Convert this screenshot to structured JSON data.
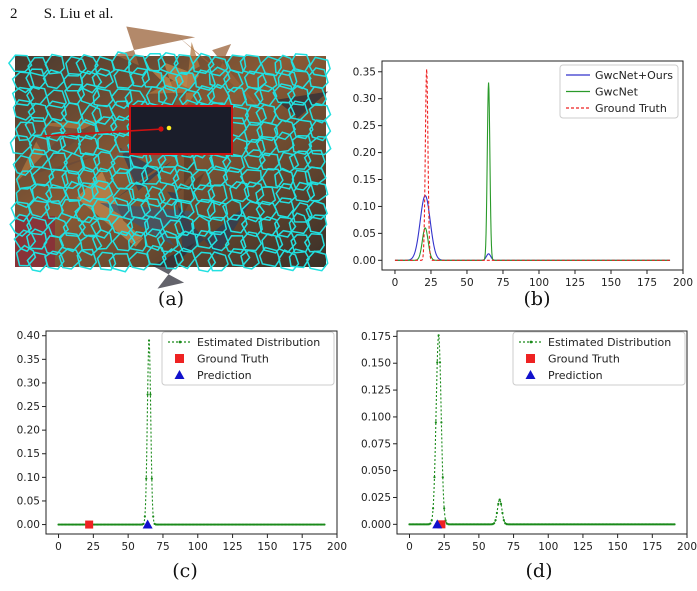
{
  "header": {
    "page_number": "2",
    "authors": "S. Liu et al."
  },
  "captions": {
    "a": "(a)",
    "b": "(b)",
    "c": "(c)",
    "d": "(d)"
  },
  "colors": {
    "segment_line": "#22e0e0",
    "highlight_box": "#cc1111",
    "ours": "#3333cc",
    "gwcnet": "#2a9a2a",
    "ground_truth": "#ee2222",
    "estimated": "#1a8a1a",
    "prediction": "#1111cc"
  },
  "chart_data": [
    {
      "id": "b",
      "type": "line",
      "x_ticks": [
        0,
        25,
        50,
        75,
        100,
        125,
        150,
        175,
        200
      ],
      "y_ticks": [
        "0.00",
        "0.05",
        "0.10",
        "0.15",
        "0.20",
        "0.25",
        "0.30",
        "0.35"
      ],
      "xlim": [
        -9,
        200
      ],
      "ylim": [
        -0.018,
        0.37
      ],
      "legend": [
        "GwcNet+Ours",
        "GwcNet",
        "Ground Truth"
      ],
      "legend_position": "top-right",
      "series": [
        {
          "name": "GwcNet+Ours",
          "peaks": [
            {
              "center": 21,
              "height": 0.12,
              "width": 3.5
            },
            {
              "center": 65,
              "height": 0.012,
              "width": 1.5
            }
          ]
        },
        {
          "name": "GwcNet",
          "peaks": [
            {
              "center": 21,
              "height": 0.06,
              "width": 2.0
            },
            {
              "center": 65,
              "height": 0.33,
              "width": 0.9
            }
          ]
        },
        {
          "name": "Ground Truth",
          "peaks": [
            {
              "center": 22,
              "height": 0.355,
              "width": 0.9
            }
          ]
        }
      ]
    },
    {
      "id": "c",
      "type": "line",
      "x_ticks": [
        0,
        25,
        50,
        75,
        100,
        125,
        150,
        175,
        200
      ],
      "y_ticks": [
        "0.00",
        "0.05",
        "0.10",
        "0.15",
        "0.20",
        "0.25",
        "0.30",
        "0.35",
        "0.40"
      ],
      "xlim": [
        -9,
        200
      ],
      "ylim": [
        -0.02,
        0.41
      ],
      "legend": [
        "Estimated Distribution",
        "Ground Truth",
        "Prediction"
      ],
      "legend_position": "top-right",
      "series": [
        {
          "name": "Estimated Distribution",
          "peaks": [
            {
              "center": 65,
              "height": 0.39,
              "width": 1.2
            }
          ]
        }
      ],
      "ground_truth_x": 22,
      "prediction_x": 64
    },
    {
      "id": "d",
      "type": "line",
      "x_ticks": [
        0,
        25,
        50,
        75,
        100,
        125,
        150,
        175,
        200
      ],
      "y_ticks": [
        "0.000",
        "0.025",
        "0.050",
        "0.075",
        "0.100",
        "0.125",
        "0.150",
        "0.175"
      ],
      "xlim": [
        -9,
        200
      ],
      "ylim": [
        -0.009,
        0.18
      ],
      "legend": [
        "Estimated Distribution",
        "Ground Truth",
        "Prediction"
      ],
      "legend_position": "top-right",
      "series": [
        {
          "name": "Estimated Distribution",
          "peaks": [
            {
              "center": 21,
              "height": 0.176,
              "width": 1.8
            },
            {
              "center": 65,
              "height": 0.023,
              "width": 1.6
            }
          ]
        }
      ],
      "ground_truth_x": 23,
      "prediction_x": 20
    }
  ]
}
